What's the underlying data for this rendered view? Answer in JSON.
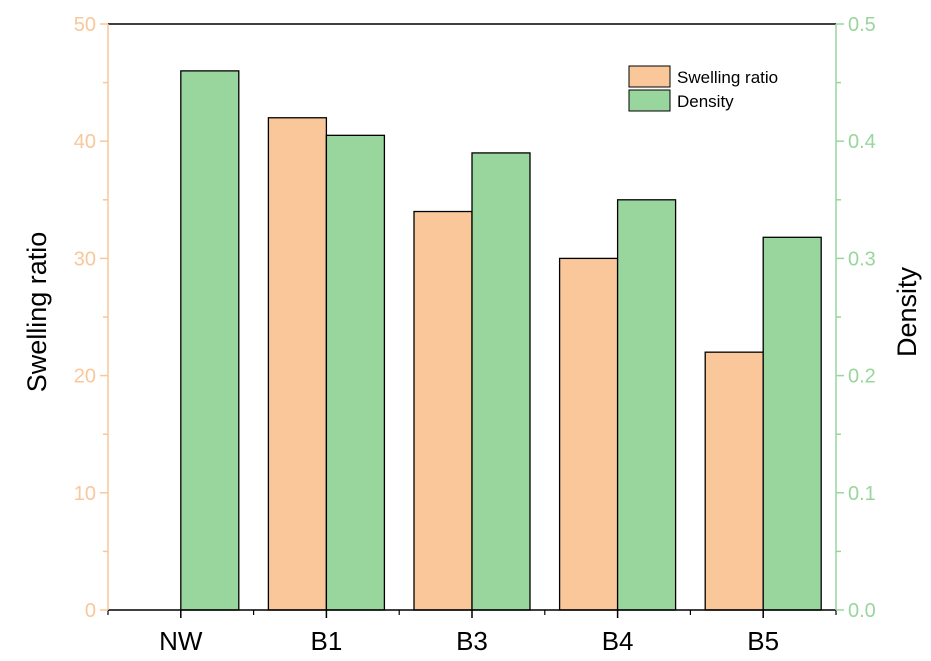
{
  "chart_data": {
    "type": "bar",
    "categories": [
      "NW",
      "B1",
      "B3",
      "B4",
      "B5"
    ],
    "series": [
      {
        "name": "Swelling ratio",
        "axis": "left",
        "values": [
          null,
          42,
          34,
          30,
          22
        ]
      },
      {
        "name": "Density",
        "axis": "right",
        "values": [
          0.46,
          0.405,
          0.39,
          0.35,
          0.318
        ]
      }
    ],
    "ylabel": "Swelling ratio",
    "ylabel_right": "Density",
    "ylim": [
      0,
      50
    ],
    "ylim_right": [
      0,
      0.5
    ],
    "y_ticks": [
      "0",
      "10",
      "20",
      "30",
      "40",
      "50"
    ],
    "y_ticks_right": [
      "0.0",
      "0.1",
      "0.2",
      "0.3",
      "0.4",
      "0.5"
    ],
    "legend_position": "top-right",
    "grid": false,
    "colors": {
      "swelling": "#F9C79A",
      "density": "#99D69D",
      "left_axis": "#F9C79A",
      "right_axis": "#99D69D",
      "text": "#000000"
    }
  }
}
